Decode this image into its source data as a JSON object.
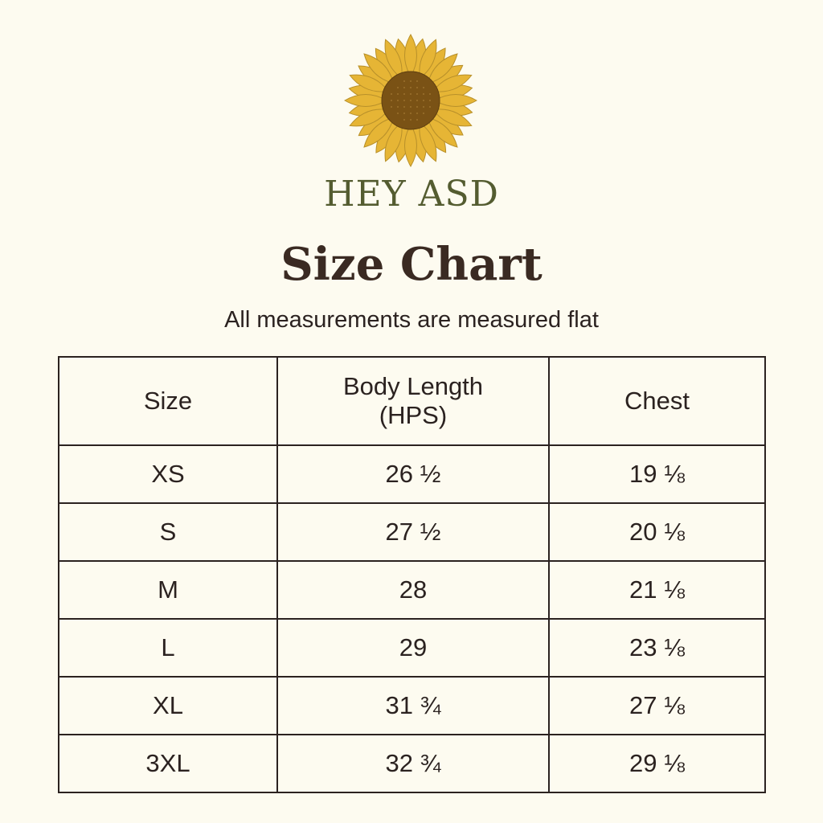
{
  "brand": {
    "name": "HEY ASD",
    "logo_icon": "sunflower-icon",
    "petal_color": "#e6b535",
    "center_color": "#7a5215",
    "text_color": "#545c30"
  },
  "title": "Size Chart",
  "subtitle": "All measurements are measured flat",
  "table": {
    "headers": [
      "Size",
      "Body Length\n(HPS)",
      "Chest"
    ],
    "header_lines": [
      [
        "Size"
      ],
      [
        "Body Length",
        "(HPS)"
      ],
      [
        "Chest"
      ]
    ],
    "rows": [
      [
        "XS",
        "26 ½",
        "19 ⅛"
      ],
      [
        "S",
        "27 ½",
        "20 ⅛"
      ],
      [
        "M",
        "28",
        "21 ⅛"
      ],
      [
        "L",
        "29",
        "23 ⅛"
      ],
      [
        "XL",
        "31 ¾",
        "27 ⅛"
      ],
      [
        "3XL",
        "32 ¾",
        "29 ⅛"
      ]
    ]
  }
}
